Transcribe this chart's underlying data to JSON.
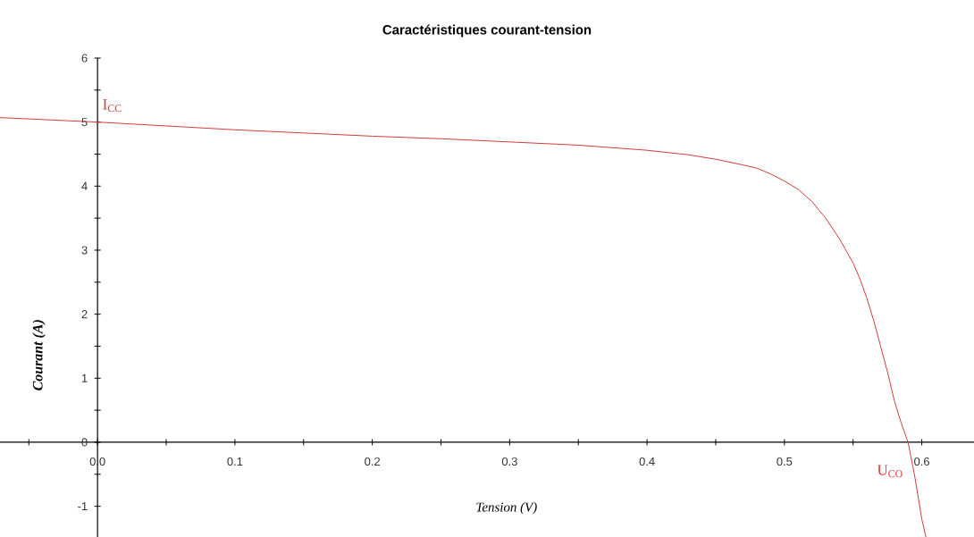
{
  "chart_data": {
    "type": "line",
    "title": "Caractéristiques courant-tension",
    "xlabel": "Tension (V)",
    "ylabel": "Courant (A)",
    "x": [
      -0.071,
      0,
      0.05,
      0.1,
      0.15,
      0.2,
      0.25,
      0.3,
      0.35,
      0.4,
      0.43,
      0.45,
      0.47,
      0.48,
      0.49,
      0.5,
      0.51,
      0.52,
      0.53,
      0.54,
      0.55,
      0.555,
      0.56,
      0.565,
      0.57,
      0.575,
      0.58,
      0.585,
      0.59,
      0.595,
      0.6,
      0.603
    ],
    "series": [
      {
        "color": "#d23c3c",
        "values": [
          5.07,
          5.0,
          4.94,
          4.88,
          4.83,
          4.78,
          4.74,
          4.69,
          4.64,
          4.56,
          4.49,
          4.42,
          4.33,
          4.28,
          4.19,
          4.08,
          3.95,
          3.76,
          3.5,
          3.18,
          2.8,
          2.55,
          2.25,
          1.9,
          1.5,
          1.1,
          0.65,
          0.3,
          0.0,
          -0.55,
          -1.2,
          -1.48
        ]
      }
    ],
    "xlim": [
      -0.071,
      0.638
    ],
    "ylim": [
      -1.48,
      6
    ],
    "xticks": [
      {
        "value": -0.05,
        "label": null
      },
      {
        "value": 0,
        "label": "0.0"
      },
      {
        "value": 0.05,
        "label": null
      },
      0.1,
      {
        "value": 0.15,
        "label": null
      },
      0.2,
      {
        "value": 0.25,
        "label": null
      },
      0.3,
      {
        "value": 0.35,
        "label": null
      },
      0.4,
      {
        "value": 0.45,
        "label": null
      },
      0.5,
      {
        "value": 0.55,
        "label": null
      },
      0.6
    ],
    "yticks": [
      -1,
      {
        "value": -0.5,
        "label": null
      },
      0,
      {
        "value": 0.5,
        "label": null
      },
      1,
      {
        "value": 1.5,
        "label": null
      },
      2,
      {
        "value": 2.5,
        "label": null
      },
      3,
      {
        "value": 3.5,
        "label": null
      },
      4,
      {
        "value": 4.5,
        "label": null
      },
      5,
      {
        "value": 5.5,
        "label": null
      },
      6
    ],
    "annotations": [
      {
        "text": "I$_{CC}$",
        "x": 0,
        "y": 5
      },
      {
        "text": "U$_{CO}$",
        "x": 0.59,
        "y": 0
      }
    ]
  }
}
